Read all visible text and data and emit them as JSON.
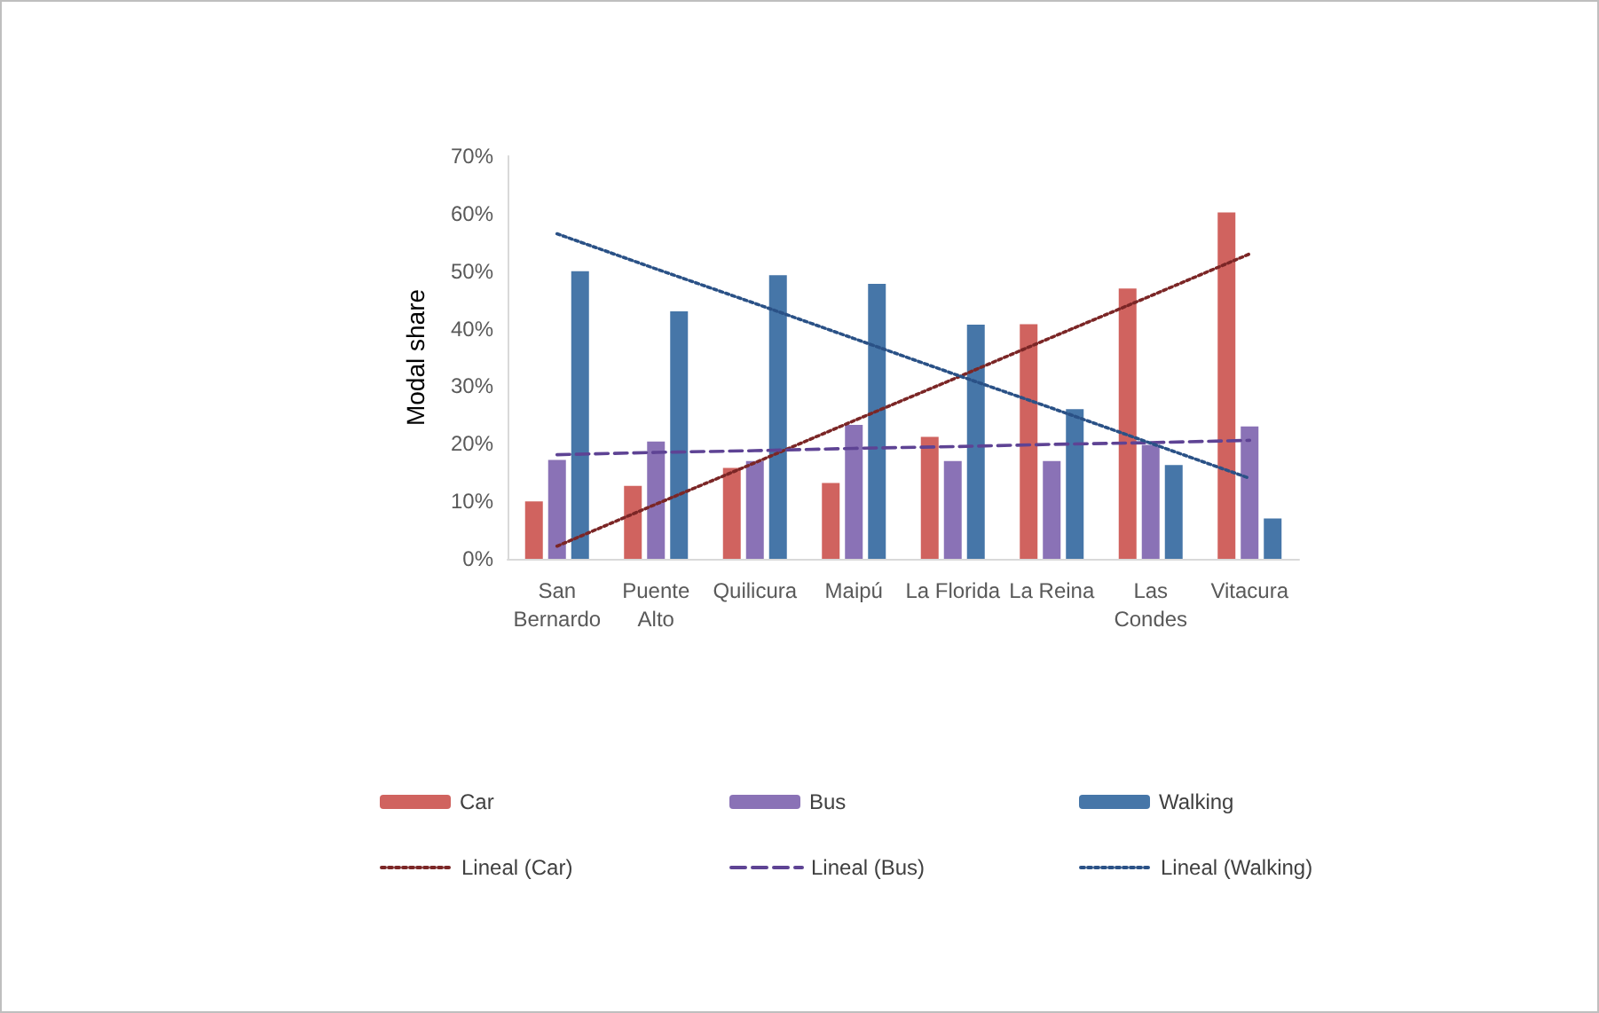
{
  "chart_data": {
    "type": "bar",
    "ylabel": "Modal share",
    "categories": [
      "San\nBernardo",
      "Puente\nAlto",
      "Quilicura",
      "Maipú",
      "La Florida",
      "La Reina",
      "Las\nCondes",
      "Vitacura"
    ],
    "series": [
      {
        "name": "Car",
        "color": "#d0635f",
        "values": [
          10,
          12.7,
          15.8,
          13.2,
          21.2,
          40.8,
          47,
          60.2
        ]
      },
      {
        "name": "Bus",
        "color": "#8a72b6",
        "values": [
          17.2,
          20.4,
          17,
          23.3,
          17,
          17,
          19.8,
          23
        ]
      },
      {
        "name": "Walking",
        "color": "#4676a8",
        "values": [
          50,
          43,
          49.3,
          47.8,
          40.7,
          26,
          16.3,
          7
        ]
      },
      {
        "name": "Lineal (Car)",
        "type": "line",
        "line_style": "dotted",
        "color": "#7b2626",
        "values": [
          2.2,
          9.5,
          16.7,
          24.0,
          31.2,
          38.5,
          45.7,
          53
        ]
      },
      {
        "name": "Lineal (Bus)",
        "type": "line",
        "line_style": "dashed",
        "color": "#5e4394",
        "values": [
          18.1,
          18.5,
          18.8,
          19.2,
          19.5,
          19.9,
          20.2,
          20.6
        ]
      },
      {
        "name": "Lineal (Walking)",
        "type": "line",
        "line_style": "dotted",
        "color": "#2a5186",
        "values": [
          56.5,
          50.4,
          44.4,
          38.3,
          32.2,
          26.2,
          20.1,
          14.0
        ]
      }
    ],
    "ylim": [
      0,
      70
    ],
    "yticks": [
      {
        "value": 0,
        "label": "0%"
      },
      {
        "value": 10,
        "label": "10%"
      },
      {
        "value": 20,
        "label": "20%"
      },
      {
        "value": 30,
        "label": "30%"
      },
      {
        "value": 40,
        "label": "40%"
      },
      {
        "value": 50,
        "label": "50%"
      },
      {
        "value": 60,
        "label": "60%"
      },
      {
        "value": 70,
        "label": "70%"
      }
    ],
    "grid": false,
    "legend": "bottom",
    "marker": "none"
  }
}
